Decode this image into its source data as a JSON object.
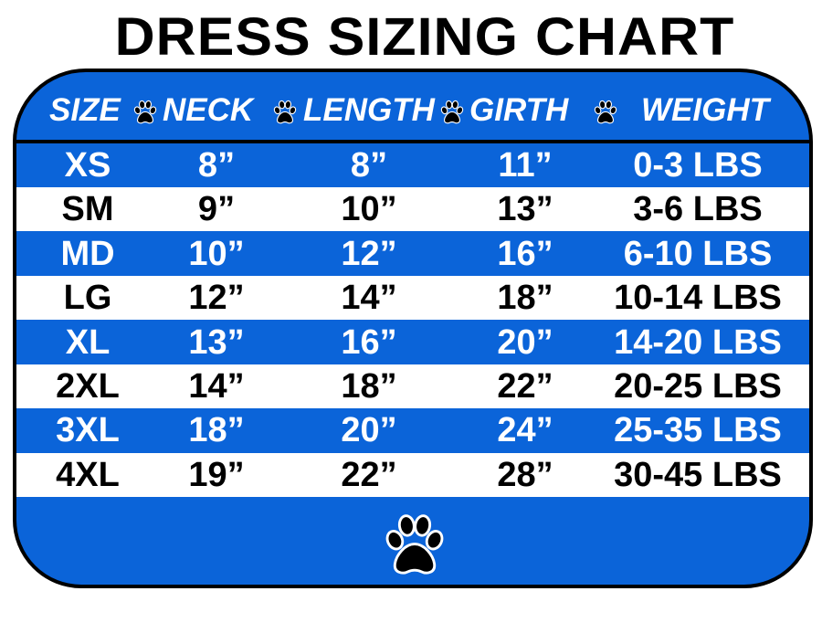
{
  "title": "DRESS SIZING CHART",
  "colors": {
    "blue": "#0b64d9",
    "white": "#ffffff",
    "text_dark": "#000000"
  },
  "headers": [
    "SIZE",
    "NECK",
    "LENGTH",
    "GIRTH",
    "WEIGHT"
  ],
  "separator_icon": "paw-print-icon",
  "rows": [
    {
      "size": "XS",
      "neck": "8”",
      "length": "8”",
      "girth": "11”",
      "weight": "0-3 LBS"
    },
    {
      "size": "SM",
      "neck": "9”",
      "length": "10”",
      "girth": "13”",
      "weight": "3-6 LBS"
    },
    {
      "size": "MD",
      "neck": "10”",
      "length": "12”",
      "girth": "16”",
      "weight": "6-10 LBS"
    },
    {
      "size": "LG",
      "neck": "12”",
      "length": "14”",
      "girth": "18”",
      "weight": "10-14 LBS"
    },
    {
      "size": "XL",
      "neck": "13”",
      "length": "16”",
      "girth": "20”",
      "weight": "14-20 LBS"
    },
    {
      "size": "2XL",
      "neck": "14”",
      "length": "18”",
      "girth": "22”",
      "weight": "20-25 LBS"
    },
    {
      "size": "3XL",
      "neck": "18”",
      "length": "20”",
      "girth": "24”",
      "weight": "25-35 LBS"
    },
    {
      "size": "4XL",
      "neck": "19”",
      "length": "22”",
      "girth": "28”",
      "weight": "30-45 LBS"
    }
  ]
}
